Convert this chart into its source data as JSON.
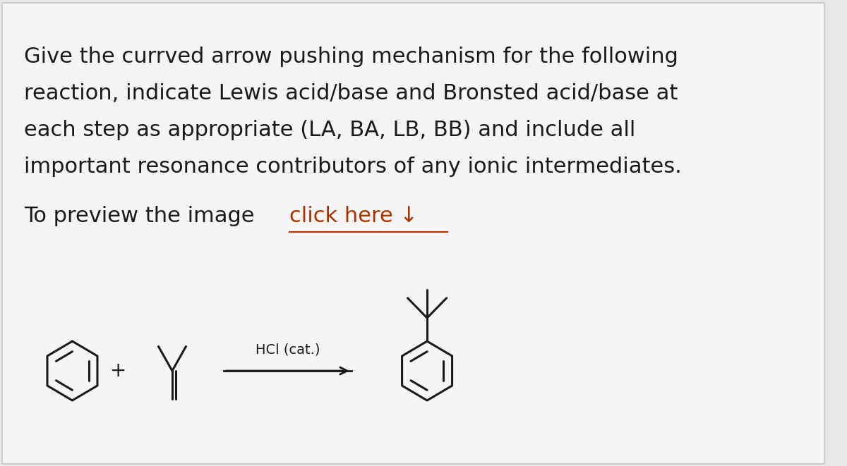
{
  "background_color": "#e8e8e8",
  "panel_color": "#f5f5f5",
  "border_color": "#cccccc",
  "text_color": "#1a1a1a",
  "line_color": "#1a1a1a",
  "title_lines": [
    "Give the currved arrow pushing mechanism for the following",
    "reaction, indicate Lewis acid/base and Bronsted acid/base at",
    "each step as appropriate (LA, BA, LB, BB) and include all",
    "important resonance contributors of any ionic intermediates."
  ],
  "link_prefix": "To preview the image ",
  "link_underline": "click here ↓",
  "catalyst_text": "HCl (cat.)",
  "title_fontsize": 22,
  "link_fontsize": 22,
  "catalyst_fontsize": 14,
  "figure_width": 12.0,
  "figure_height": 6.61
}
